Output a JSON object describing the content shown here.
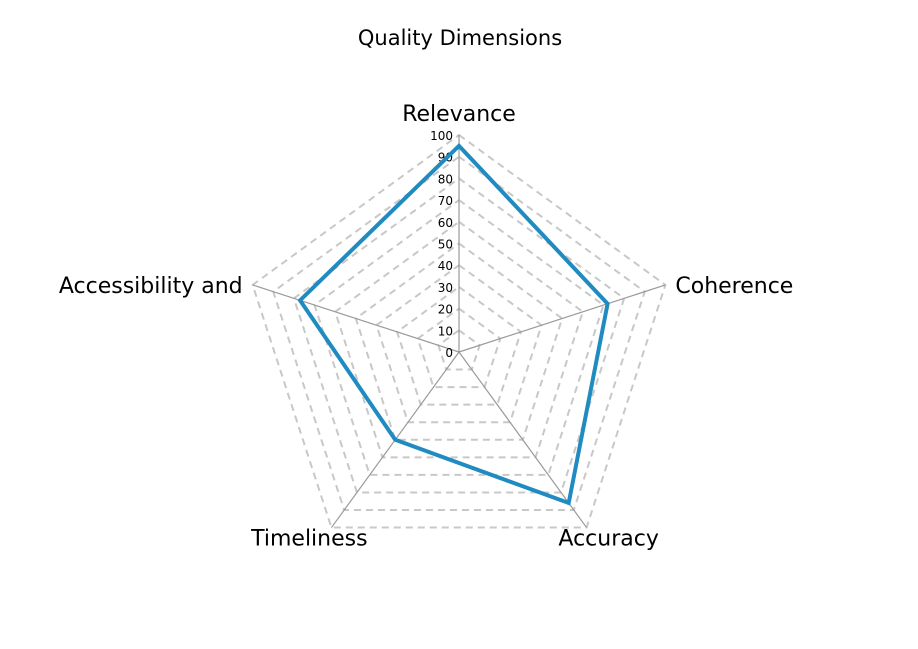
{
  "chart_data": {
    "type": "radar",
    "title": "Quality Dimensions",
    "axes": [
      "Relevance",
      "Coherence",
      "Accuracy",
      "Timeliness",
      "Accessibility and"
    ],
    "ticks": [
      "0",
      "10",
      "20",
      "30",
      "40",
      "50",
      "60",
      "70",
      "80",
      "90",
      "100"
    ],
    "rlim": [
      0,
      100
    ],
    "grid": true,
    "legend": "none",
    "series": [
      {
        "values": [
          95,
          72,
          86,
          50,
          77
        ],
        "color": "#1f8bc0"
      }
    ]
  }
}
